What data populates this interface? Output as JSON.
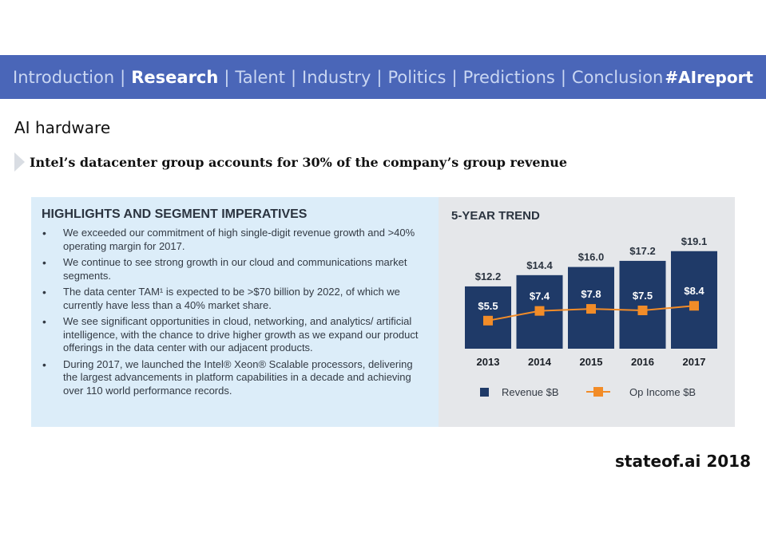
{
  "nav": {
    "items": [
      {
        "label": "Introduction",
        "active": false
      },
      {
        "label": "Research",
        "active": true
      },
      {
        "label": "Talent",
        "active": false
      },
      {
        "label": "Industry",
        "active": false
      },
      {
        "label": "Politics",
        "active": false
      },
      {
        "label": "Predictions",
        "active": false
      },
      {
        "label": "Conclusion",
        "active": false
      }
    ],
    "separator": "|",
    "hashtag": "#AIreport"
  },
  "slide": {
    "title": "AI hardware",
    "subtitle": "Intel’s datacenter group accounts for 30% of the company’s group revenue",
    "footer": "stateof.ai 2018"
  },
  "highlights": {
    "heading": "HIGHLIGHTS AND SEGMENT IMPERATIVES",
    "items": [
      "We exceeded our commitment of high single-digit revenue growth and >40% operating margin for 2017.",
      "We continue to see strong growth in our cloud and communications market segments.",
      "The data center TAM¹ is expected to be >$70 billion by 2022, of which we currently have less than a 40% market share.",
      "We see significant opportunities in cloud, networking, and analytics/ artificial intelligence, with the chance to drive higher growth as we expand our product offerings in the data center with our adjacent products.",
      "During 2017, we launched the Intel® Xeon® Scalable processors, delivering the largest advancements in platform capabilities in a decade and achieving over 110 world performance records."
    ]
  },
  "colors": {
    "nav_bg": "#4a66b8",
    "bar": "#1f3a68",
    "line": "#f28c28",
    "left_panel_bg": "#dcedf9",
    "right_panel_bg": "#e5e7ea"
  },
  "chart_data": {
    "type": "bar",
    "title": "5-YEAR TREND",
    "categories": [
      "2013",
      "2014",
      "2015",
      "2016",
      "2017"
    ],
    "series": [
      {
        "name": "Revenue $B",
        "type": "bar",
        "values": [
          12.2,
          14.4,
          16.0,
          17.2,
          19.1
        ],
        "labels": [
          "$12.2",
          "$14.4",
          "$16.0",
          "$17.2",
          "$19.1"
        ]
      },
      {
        "name": "Op Income $B",
        "type": "line",
        "values": [
          5.5,
          7.4,
          7.8,
          7.5,
          8.4
        ],
        "labels": [
          "$5.5",
          "$7.4",
          "$7.8",
          "$7.5",
          "$8.4"
        ]
      }
    ],
    "ylim": [
      0,
      20
    ],
    "grid": false,
    "legend": "bottom"
  }
}
